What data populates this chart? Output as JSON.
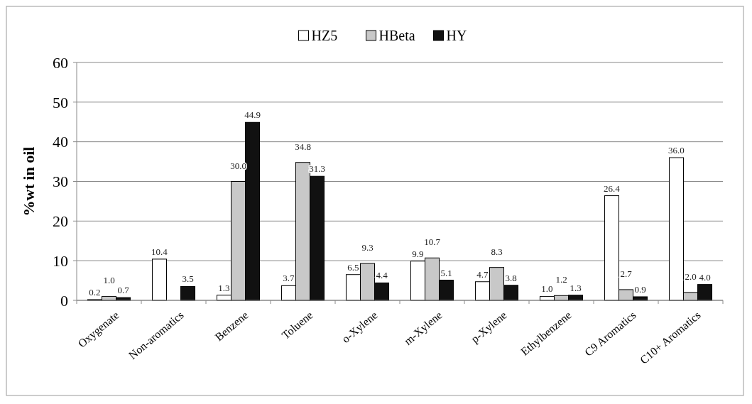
{
  "chart_data": {
    "type": "bar",
    "ylabel": "%wt in oil",
    "categories": [
      "Oxygenate",
      "Non-aromatics",
      "Benzene",
      "Toluene",
      "o-Xylene",
      "m-Xylene",
      "p-Xylene",
      "Ethylbenzene",
      "C9 Aromatics",
      "C10+ Aromatics"
    ],
    "series": [
      {
        "name": "HZ5",
        "color": "#ffffff",
        "values": [
          0.2,
          10.4,
          1.3,
          3.7,
          6.5,
          9.9,
          4.7,
          1.0,
          26.4,
          36.0
        ],
        "value_labels": [
          "0.2",
          "10.4",
          "1.3",
          "3.7",
          "6.5",
          "9.9",
          "4.7",
          "1.0",
          "26.4",
          "36.0"
        ]
      },
      {
        "name": "HBeta",
        "color": "#c8c8c8",
        "values": [
          1.0,
          null,
          30.0,
          34.8,
          9.3,
          10.7,
          8.3,
          1.2,
          2.7,
          2.0
        ],
        "value_labels": [
          "1.0",
          null,
          "30.0",
          "34.8",
          "9.3",
          "10.7",
          "8.3",
          "1.2",
          "2.7",
          "2.0"
        ]
      },
      {
        "name": "HY",
        "color": "#111111",
        "values": [
          0.7,
          3.5,
          44.9,
          31.3,
          4.4,
          5.1,
          3.8,
          1.3,
          0.9,
          4.0
        ],
        "value_labels": [
          "0.7",
          "3.5",
          "44.9",
          "31.3",
          "4.4",
          "5.1",
          "3.8",
          "1.3",
          "0.9",
          "4.0"
        ]
      }
    ],
    "ylim": [
      0,
      60
    ],
    "yticks": [
      0,
      10,
      20,
      30,
      40,
      50,
      60
    ],
    "grid": "y",
    "legend": "top"
  }
}
